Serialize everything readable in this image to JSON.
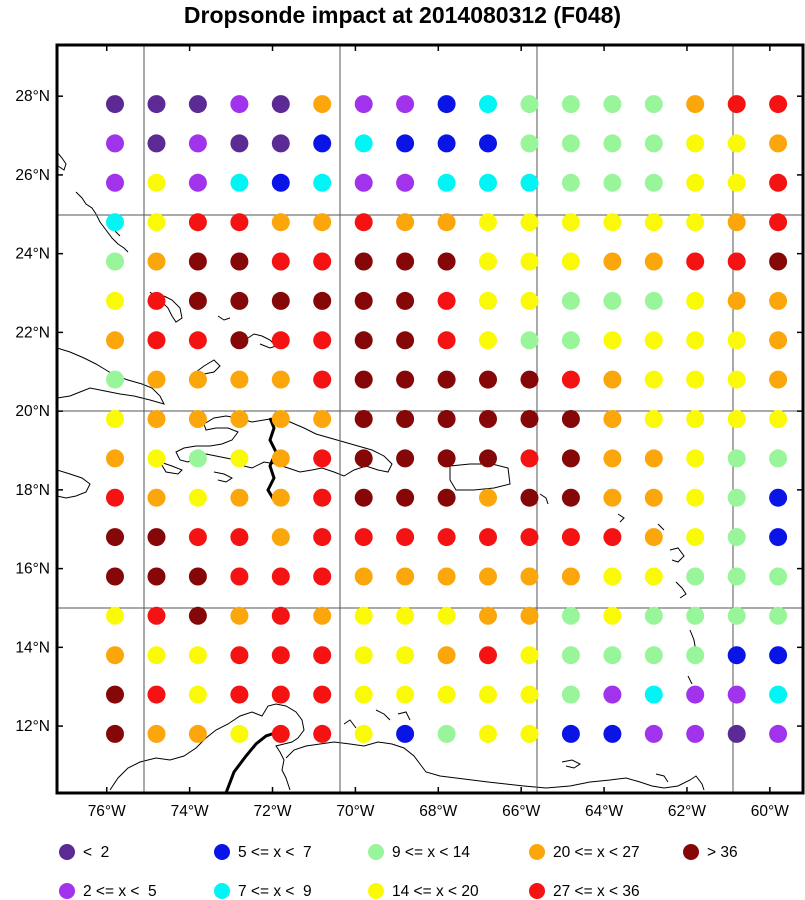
{
  "title": "Dropsonde impact at 2014080312 (F048)",
  "lon_labels": [
    "76°W",
    "74°W",
    "72°W",
    "70°W",
    "68°W",
    "66°W",
    "64°W",
    "62°W",
    "60°W"
  ],
  "lat_labels": [
    "28°N",
    "26°N",
    "24°N",
    "22°N",
    "20°N",
    "18°N",
    "16°N",
    "14°N",
    "12°N"
  ],
  "legend": [
    {
      "label": "<  2",
      "color": "#5b2a95"
    },
    {
      "label": "5 <= x <  7",
      "color": "#0a14e6"
    },
    {
      "label": "9 <= x < 14",
      "color": "#99f599"
    },
    {
      "label": "20 <= x < 27",
      "color": "#fba60a"
    },
    {
      "label": "> 36",
      "color": "#850707"
    },
    {
      "label": "2 <= x <  5",
      "color": "#a033eb"
    },
    {
      "label": "7 <= x <  9",
      "color": "#00f5f5"
    },
    {
      "label": "14 <= x < 20",
      "color": "#fafa07"
    },
    {
      "label": "27 <= x < 36",
      "color": "#f51212"
    }
  ],
  "grid": {
    "lon": [
      -75.8,
      -74.8,
      -73.8,
      -72.8,
      -71.8,
      -70.8,
      -69.8,
      -68.8,
      -67.8,
      -66.8,
      -65.8,
      -64.8,
      -63.8,
      -62.8,
      -61.8,
      -60.8,
      -59.8
    ],
    "lat": [
      27.8,
      26.8,
      25.8,
      24.8,
      23.8,
      22.8,
      21.8,
      20.8,
      19.8,
      18.8,
      17.8,
      16.8,
      15.8,
      14.8,
      13.8,
      12.8,
      11.8
    ],
    "codes": [
      "AAAFADFFEBCCCCDII",
      "FAFAAEBEEECCCCHHD",
      "FHFBEBFFBBBCCCHHI",
      "BHIIDDIDDHHHHHHDI",
      "CDJJIIJJJHHHDDIIJ",
      "HIJJJJJJIHHCCCHDD",
      "DIIJIIJJIHCCHHHHD",
      "CDDDDIJJJJJIDHHHD",
      "HDDDDDJJJJJJDHHHH",
      "DHCHDIJJJJIJDDHCC",
      "IDHDDIJJJDJJDDHCE",
      "JJIIDIIIIIIIIDHCE",
      "JJJIIIDDDDDDHHCCC",
      "HIJDIDHHHDDCHCCCC",
      "DHHIIIHHDIHCCCCEE",
      "JIHIIIHHHHHCFBFFB",
      "JDDHIIHECHHEEFFAF"
    ]
  }
}
